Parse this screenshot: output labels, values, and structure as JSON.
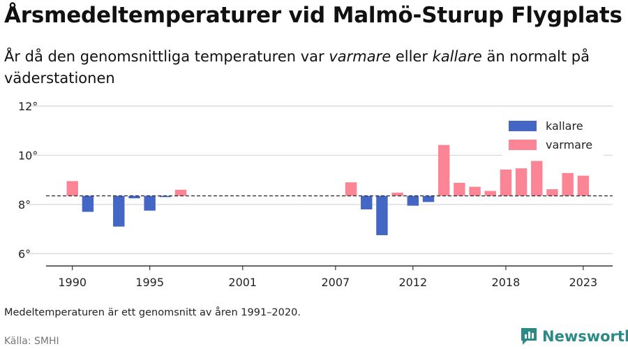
{
  "header": {
    "title": "Årsmedeltemperaturer vid Malmö-Sturup Flygplats",
    "subtitle_parts": [
      "År då den genomsnittliga temperaturen var ",
      "varmare",
      " eller ",
      "kallare",
      " än normalt på väderstationen"
    ]
  },
  "footer": {
    "note": "Medeltemperaturen är ett genomsnitt av åren 1991–2020.",
    "source": "Källa: SMHI",
    "brand": "Newsworthy"
  },
  "colors": {
    "kallare": "#4466c4",
    "varmare": "#fb8595",
    "grid": "#dcdcdc",
    "axis": "#333333",
    "brand": "#2b8a86"
  },
  "chart_data": {
    "type": "bar",
    "baseline": 8.35,
    "ylim": [
      5.5,
      12
    ],
    "yticks": [
      6,
      8,
      10,
      12
    ],
    "ytick_labels": [
      "6°",
      "8°",
      "10°",
      "12°"
    ],
    "xlim": [
      1988.3,
      2024.9
    ],
    "xticks": [
      1990,
      1995,
      2001,
      2007,
      2012,
      2018,
      2023
    ],
    "xtick_labels": [
      "1990",
      "1995",
      "2001",
      "2007",
      "2012",
      "2018",
      "2023"
    ],
    "legend": {
      "position": "top-right",
      "items": [
        {
          "key": "kallare",
          "label": "kallare"
        },
        {
          "key": "varmare",
          "label": "varmare"
        }
      ]
    },
    "bars": [
      {
        "year": 1990,
        "value": 8.95,
        "category": "varmare"
      },
      {
        "year": 1991,
        "value": 7.7,
        "category": "kallare"
      },
      {
        "year": 1993,
        "value": 7.1,
        "category": "kallare"
      },
      {
        "year": 1994,
        "value": 8.25,
        "category": "kallare"
      },
      {
        "year": 1995,
        "value": 7.75,
        "category": "kallare"
      },
      {
        "year": 1996,
        "value": 8.3,
        "category": "kallare"
      },
      {
        "year": 1997,
        "value": 8.6,
        "category": "varmare"
      },
      {
        "year": 2008,
        "value": 8.9,
        "category": "varmare"
      },
      {
        "year": 2009,
        "value": 7.8,
        "category": "kallare"
      },
      {
        "year": 2010,
        "value": 6.75,
        "category": "kallare"
      },
      {
        "year": 2011,
        "value": 8.48,
        "category": "varmare"
      },
      {
        "year": 2012,
        "value": 7.95,
        "category": "kallare"
      },
      {
        "year": 2013,
        "value": 8.1,
        "category": "kallare"
      },
      {
        "year": 2014,
        "value": 10.42,
        "category": "varmare"
      },
      {
        "year": 2015,
        "value": 8.88,
        "category": "varmare"
      },
      {
        "year": 2016,
        "value": 8.72,
        "category": "varmare"
      },
      {
        "year": 2017,
        "value": 8.55,
        "category": "varmare"
      },
      {
        "year": 2018,
        "value": 9.42,
        "category": "varmare"
      },
      {
        "year": 2019,
        "value": 9.47,
        "category": "varmare"
      },
      {
        "year": 2020,
        "value": 9.77,
        "category": "varmare"
      },
      {
        "year": 2021,
        "value": 8.62,
        "category": "varmare"
      },
      {
        "year": 2022,
        "value": 9.28,
        "category": "varmare"
      },
      {
        "year": 2023,
        "value": 9.17,
        "category": "varmare"
      }
    ]
  }
}
